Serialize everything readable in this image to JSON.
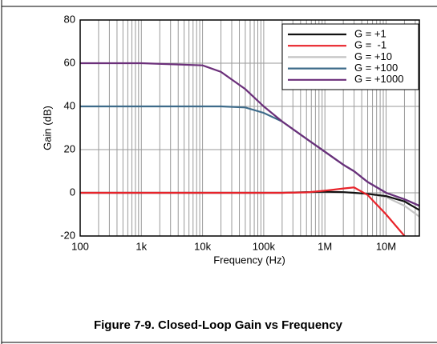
{
  "chart_data": {
    "type": "line",
    "title": "Figure 7-9. Closed-Loop Gain vs Frequency",
    "xlabel": "Frequency (Hz)",
    "ylabel": "Gain (dB)",
    "xscale": "log",
    "grid": true,
    "legend": "upper right",
    "xlim": [
      100,
      35000000
    ],
    "ylim": [
      -20,
      80
    ],
    "xticks": [
      100,
      {
        "value": 1000,
        "label": "1k"
      },
      {
        "value": 10000,
        "label": "10k"
      },
      {
        "value": 100000,
        "label": "100k"
      },
      {
        "value": 1000000,
        "label": "1M"
      },
      {
        "value": 10000000,
        "label": "10M"
      }
    ],
    "xminorticks": [
      200,
      300,
      400,
      500,
      600,
      700,
      800,
      900,
      2000,
      3000,
      4000,
      5000,
      6000,
      7000,
      8000,
      9000,
      20000,
      30000,
      40000,
      50000,
      60000,
      70000,
      80000,
      90000,
      200000,
      300000,
      400000,
      500000,
      600000,
      700000,
      800000,
      900000,
      2000000,
      3000000,
      4000000,
      5000000,
      6000000,
      7000000,
      8000000,
      9000000,
      20000000,
      30000000
    ],
    "yticks": [
      -20,
      0,
      20,
      40,
      60,
      80
    ],
    "x": [
      100,
      1000,
      10000,
      20000,
      50000,
      100000,
      200000,
      500000,
      1000000,
      2000000,
      3000000,
      5000000,
      10000000,
      20000000,
      35000000
    ],
    "series": [
      {
        "name": "G = +1",
        "color": "#111111",
        "values": [
          0,
          0,
          0,
          0,
          0,
          0,
          0,
          0.3,
          0.5,
          0.3,
          0,
          -0.5,
          -1.5,
          -4,
          -8
        ]
      },
      {
        "name": "G =  -1",
        "color": "#e8232a",
        "values": [
          0,
          0,
          0,
          0,
          0,
          0,
          0,
          0.2,
          1,
          2,
          2.5,
          -1,
          -10,
          -20,
          null
        ]
      },
      {
        "name": "G = +10",
        "color": "#c4c4c4",
        "values": [
          0,
          0,
          0,
          0,
          0,
          0,
          0,
          0.3,
          0.5,
          0.3,
          0,
          -0.5,
          -2,
          -6,
          -11
        ]
      },
      {
        "name": "G = +100",
        "color": "#3e6b8a",
        "values": [
          40,
          40,
          40,
          40,
          39.5,
          37,
          33,
          25,
          19,
          13,
          10,
          5,
          0,
          -3,
          -6
        ]
      },
      {
        "name": "G = +1000",
        "color": "#6b2f7a",
        "values": [
          60,
          60,
          59,
          56,
          48,
          40,
          33,
          25,
          19,
          13,
          10,
          5,
          0,
          -3,
          -6
        ]
      }
    ]
  }
}
